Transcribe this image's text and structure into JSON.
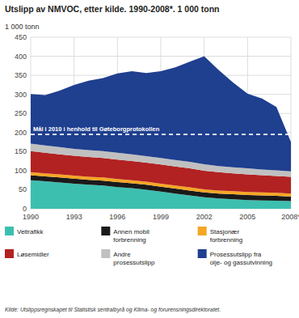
{
  "chart_data": {
    "type": "area",
    "stacked": true,
    "title": "Utslipp av NMVOC, etter kilde. 1990-2008*. 1 000 tonn",
    "y_label": "1 000 tonn",
    "x": [
      1990,
      1991,
      1992,
      1993,
      1994,
      1995,
      1996,
      1997,
      1998,
      1999,
      2000,
      2001,
      2002,
      2003,
      2004,
      2005,
      2006,
      2007,
      2008
    ],
    "xlim": [
      1990,
      2008
    ],
    "xticks": [
      1990,
      1993,
      1996,
      1999,
      2002,
      2005,
      {
        "value": 2008,
        "label": "2008*"
      }
    ],
    "ylim": [
      0,
      450
    ],
    "yticks": [
      0,
      50,
      100,
      150,
      200,
      250,
      300,
      350,
      400,
      450
    ],
    "grid": true,
    "legend": "bottom",
    "series": [
      {
        "name": "Veitrafikk",
        "color": "#3dbfb0",
        "values": [
          75,
          72,
          69,
          66,
          63,
          61,
          57,
          54,
          50,
          45,
          40,
          35,
          30,
          27,
          25,
          23,
          22,
          21,
          20
        ]
      },
      {
        "name": "Annen mobil\nforbrenning",
        "color": "#1a1a1a",
        "values": [
          13,
          13,
          13,
          13,
          13,
          13,
          13,
          13,
          13,
          13,
          13,
          13,
          13,
          13,
          13,
          13,
          13,
          13,
          12
        ]
      },
      {
        "name": "Stasjonær\nforbrenning",
        "color": "#f5a623",
        "values": [
          8,
          8,
          8,
          8,
          8,
          8,
          8,
          8,
          8,
          8,
          8,
          8,
          8,
          8,
          8,
          8,
          8,
          8,
          8
        ]
      },
      {
        "name": "Løsemidler",
        "color": "#b22222",
        "values": [
          55,
          54,
          53,
          52,
          52,
          51,
          51,
          50,
          50,
          50,
          50,
          50,
          49,
          48,
          47,
          46,
          45,
          44,
          44
        ]
      },
      {
        "name": "Andre\nprosessutslipp",
        "color": "#c0c0c0",
        "values": [
          20,
          19,
          19,
          18,
          18,
          18,
          18,
          18,
          17,
          17,
          17,
          17,
          17,
          16,
          16,
          16,
          15,
          15,
          14
        ]
      },
      {
        "name": "Prosessutslipp fra\nolje- og gassutvinning",
        "color": "#1f3f8f",
        "values": [
          130,
          132,
          148,
          168,
          182,
          192,
          208,
          218,
          218,
          228,
          243,
          263,
          283,
          252,
          222,
          196,
          186,
          166,
          77
        ]
      }
    ],
    "annotations": [
      {
        "y": 195,
        "text": "Mål i 2010 i henhold til Gøteborgprotokollen"
      }
    ],
    "source": "Kilde: Utslippsregnskapet til Statistisk sentralbyrå og Klima- og forurensningsdirektoratet."
  }
}
